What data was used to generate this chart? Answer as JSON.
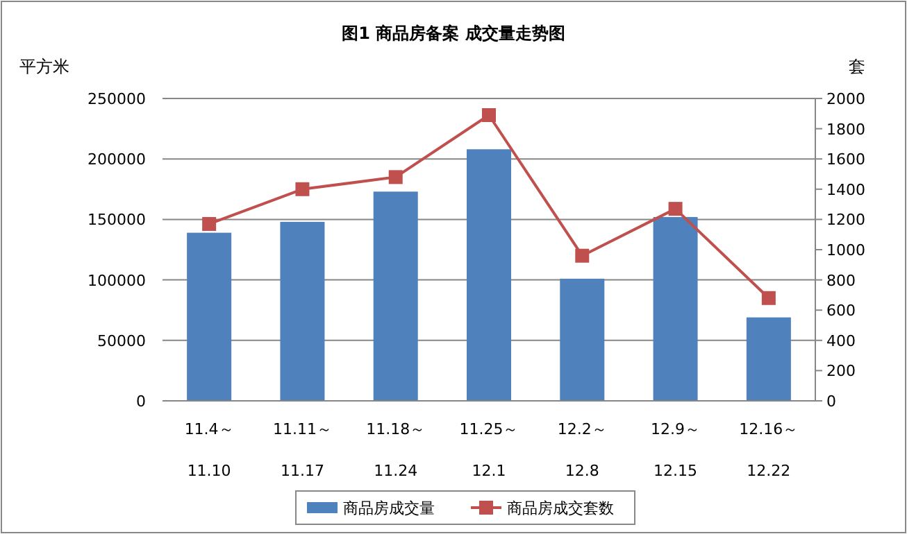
{
  "chart_data": {
    "type": "bar",
    "title": "图1   商品房备案 成交量走势图",
    "ylabel": "平方米",
    "y2label": "套",
    "categories": [
      "11.4～\n11.10",
      "11.11～\n11.17",
      "11.18～\n11.24",
      "11.25～\n12.1",
      "12.2～\n12.8",
      "12.9～\n12.15",
      "12.16～\n12.22"
    ],
    "series": [
      {
        "name": "商品房成交量",
        "color": "#4f81bd",
        "values": [
          139000,
          148000,
          173000,
          208000,
          101000,
          152000,
          69000
        ]
      },
      {
        "name": "商品房成交套数",
        "type": "line",
        "axis": "y2",
        "color": "#c0504d",
        "marker": "square",
        "values": [
          1170,
          1400,
          1480,
          1890,
          960,
          1270,
          680
        ]
      }
    ],
    "ylim": [
      0,
      250000
    ],
    "yticks": [
      0,
      50000,
      100000,
      150000,
      200000,
      250000
    ],
    "y2lim": [
      0,
      2000
    ],
    "y2ticks": [
      0,
      200,
      400,
      600,
      800,
      1000,
      1200,
      1400,
      1600,
      1800,
      2000
    ],
    "grid": "y",
    "legend": "bottom"
  }
}
